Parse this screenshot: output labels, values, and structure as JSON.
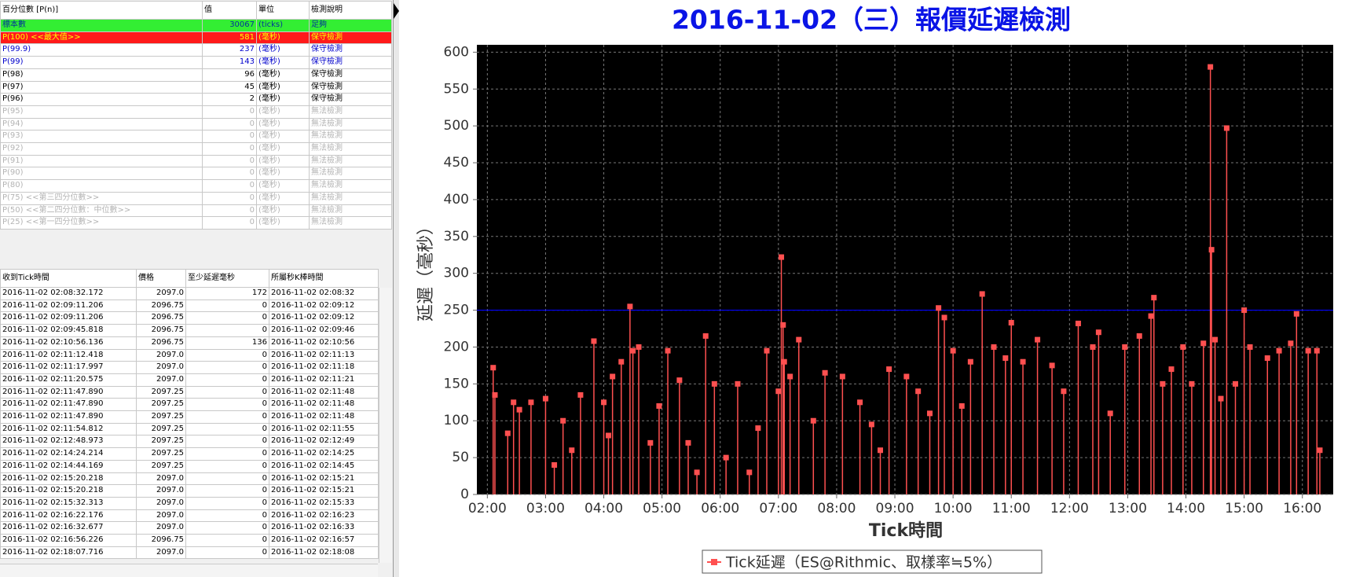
{
  "percentile_table": {
    "headers": [
      "百分位數 [P(n)]",
      "值",
      "單位",
      "檢測說明"
    ],
    "rows": [
      [
        "標本數",
        "30067",
        "(ticks)",
        "足夠"
      ],
      [
        "P(100)  <<最大值>>",
        "581",
        "(毫秒)",
        "保守檢測"
      ],
      [
        "P(99.9)",
        "237",
        "(毫秒)",
        "保守檢測"
      ],
      [
        "P(99)",
        "143",
        "(毫秒)",
        "保守檢測"
      ],
      [
        "P(98)",
        "96",
        "(毫秒)",
        "保守檢測"
      ],
      [
        "P(97)",
        "45",
        "(毫秒)",
        "保守檢測"
      ],
      [
        "P(96)",
        "2",
        "(毫秒)",
        "保守檢測"
      ],
      [
        "P(95)",
        "0",
        "(毫秒)",
        "無法檢測"
      ],
      [
        "P(94)",
        "0",
        "(毫秒)",
        "無法檢測"
      ],
      [
        "P(93)",
        "0",
        "(毫秒)",
        "無法檢測"
      ],
      [
        "P(92)",
        "0",
        "(毫秒)",
        "無法檢測"
      ],
      [
        "P(91)",
        "0",
        "(毫秒)",
        "無法檢測"
      ],
      [
        "P(90)",
        "0",
        "(毫秒)",
        "無法檢測"
      ],
      [
        "P(80)",
        "0",
        "(毫秒)",
        "無法檢測"
      ],
      [
        "P(75)  <<第三四分位數>>",
        "0",
        "(毫秒)",
        "無法檢測"
      ],
      [
        "P(50)  <<第二四分位數：中位數>>",
        "0",
        "(毫秒)",
        "無法檢測"
      ],
      [
        "P(25)  <<第一四分位數>>",
        "0",
        "(毫秒)",
        "無法檢測"
      ]
    ]
  },
  "tick_table": {
    "headers": [
      "收到Tick時間",
      "價格",
      "至少延遲毫秒",
      "所屬秒K棒時間"
    ],
    "rows": [
      [
        "2016-11-02 02:08:32.172",
        "2097.0",
        "172",
        "2016-11-02 02:08:32"
      ],
      [
        "2016-11-02 02:09:11.206",
        "2096.75",
        "0",
        "2016-11-02 02:09:12"
      ],
      [
        "2016-11-02 02:09:11.206",
        "2096.75",
        "0",
        "2016-11-02 02:09:12"
      ],
      [
        "2016-11-02 02:09:45.818",
        "2096.75",
        "0",
        "2016-11-02 02:09:46"
      ],
      [
        "2016-11-02 02:10:56.136",
        "2096.75",
        "136",
        "2016-11-02 02:10:56"
      ],
      [
        "2016-11-02 02:11:12.418",
        "2097.0",
        "0",
        "2016-11-02 02:11:13"
      ],
      [
        "2016-11-02 02:11:17.997",
        "2097.0",
        "0",
        "2016-11-02 02:11:18"
      ],
      [
        "2016-11-02 02:11:20.575",
        "2097.0",
        "0",
        "2016-11-02 02:11:21"
      ],
      [
        "2016-11-02 02:11:47.890",
        "2097.25",
        "0",
        "2016-11-02 02:11:48"
      ],
      [
        "2016-11-02 02:11:47.890",
        "2097.25",
        "0",
        "2016-11-02 02:11:48"
      ],
      [
        "2016-11-02 02:11:47.890",
        "2097.25",
        "0",
        "2016-11-02 02:11:48"
      ],
      [
        "2016-11-02 02:11:54.812",
        "2097.25",
        "0",
        "2016-11-02 02:11:55"
      ],
      [
        "2016-11-02 02:12:48.973",
        "2097.25",
        "0",
        "2016-11-02 02:12:49"
      ],
      [
        "2016-11-02 02:14:24.214",
        "2097.25",
        "0",
        "2016-11-02 02:14:25"
      ],
      [
        "2016-11-02 02:14:44.169",
        "2097.25",
        "0",
        "2016-11-02 02:14:45"
      ],
      [
        "2016-11-02 02:15:20.218",
        "2097.0",
        "0",
        "2016-11-02 02:15:21"
      ],
      [
        "2016-11-02 02:15:20.218",
        "2097.0",
        "0",
        "2016-11-02 02:15:21"
      ],
      [
        "2016-11-02 02:15:32.313",
        "2097.0",
        "0",
        "2016-11-02 02:15:33"
      ],
      [
        "2016-11-02 02:16:22.176",
        "2097.0",
        "0",
        "2016-11-02 02:16:23"
      ],
      [
        "2016-11-02 02:16:32.677",
        "2097.0",
        "0",
        "2016-11-02 02:16:33"
      ],
      [
        "2016-11-02 02:16:56.226",
        "2096.75",
        "0",
        "2016-11-02 02:16:57"
      ],
      [
        "2016-11-02 02:18:07.716",
        "2097.0",
        "0",
        "2016-11-02 02:18:08"
      ]
    ]
  },
  "chart_data": {
    "type": "stem",
    "title": "2016-11-02（三）報價延遲檢測",
    "x_label": "Tick時間",
    "y_label": "延遲（毫秒）",
    "xlim": [
      1.82,
      16.53
    ],
    "ylim": [
      0,
      610
    ],
    "xticks": [
      {
        "value": 2,
        "label": "02:00"
      },
      {
        "value": 3,
        "label": "03:00"
      },
      {
        "value": 4,
        "label": "04:00"
      },
      {
        "value": 5,
        "label": "05:00"
      },
      {
        "value": 6,
        "label": "06:00"
      },
      {
        "value": 7,
        "label": "07:00"
      },
      {
        "value": 8,
        "label": "08:00"
      },
      {
        "value": 9,
        "label": "09:00"
      },
      {
        "value": 10,
        "label": "10:00"
      },
      {
        "value": 11,
        "label": "11:00"
      },
      {
        "value": 12,
        "label": "12:00"
      },
      {
        "value": 13,
        "label": "13:00"
      },
      {
        "value": 14,
        "label": "14:00"
      },
      {
        "value": 15,
        "label": "15:00"
      },
      {
        "value": 16,
        "label": "16:00"
      }
    ],
    "yticks": [
      0,
      50,
      100,
      150,
      200,
      250,
      300,
      350,
      400,
      450,
      500,
      550,
      600
    ],
    "grid": true,
    "threshold": 250,
    "threshold_color": "#0000ff",
    "x": [
      2.1,
      2.13,
      2.35,
      2.45,
      2.55,
      2.75,
      3.0,
      3.15,
      3.3,
      3.45,
      3.6,
      3.83,
      4.0,
      4.08,
      4.15,
      4.3,
      4.45,
      4.5,
      4.6,
      4.8,
      4.95,
      5.1,
      5.3,
      5.45,
      5.6,
      5.75,
      5.9,
      6.1,
      6.3,
      6.5,
      6.65,
      6.8,
      7.0,
      7.05,
      7.08,
      7.1,
      7.2,
      7.35,
      7.6,
      7.8,
      8.1,
      8.4,
      8.6,
      8.75,
      8.9,
      9.2,
      9.4,
      9.6,
      9.75,
      9.85,
      10.0,
      10.15,
      10.3,
      10.5,
      10.7,
      10.9,
      11.0,
      11.2,
      11.45,
      11.7,
      11.9,
      12.15,
      12.4,
      12.5,
      12.7,
      12.95,
      13.2,
      13.4,
      13.45,
      13.6,
      13.75,
      13.95,
      14.1,
      14.3,
      14.42,
      14.44,
      14.5,
      14.6,
      14.7,
      14.85,
      15.0,
      15.1,
      15.4,
      15.6,
      15.8,
      15.9,
      16.1,
      16.25,
      16.3
    ],
    "series": [
      {
        "name": "Tick延遲（ES@Rithmic、取樣率≒5%）",
        "color": "#ff5050",
        "values": [
          172,
          135,
          83,
          125,
          115,
          125,
          130,
          40,
          100,
          60,
          135,
          208,
          125,
          80,
          160,
          180,
          255,
          195,
          200,
          70,
          120,
          195,
          155,
          70,
          30,
          215,
          150,
          50,
          150,
          30,
          90,
          195,
          140,
          322,
          230,
          180,
          160,
          210,
          100,
          165,
          160,
          125,
          95,
          60,
          170,
          160,
          140,
          110,
          253,
          240,
          195,
          120,
          180,
          272,
          200,
          185,
          233,
          180,
          210,
          175,
          140,
          232,
          200,
          220,
          110,
          200,
          215,
          242,
          267,
          150,
          170,
          200,
          150,
          205,
          580,
          332,
          210,
          130,
          497,
          150,
          250,
          200,
          185,
          195,
          205,
          245,
          195,
          195,
          60
        ]
      }
    ]
  }
}
